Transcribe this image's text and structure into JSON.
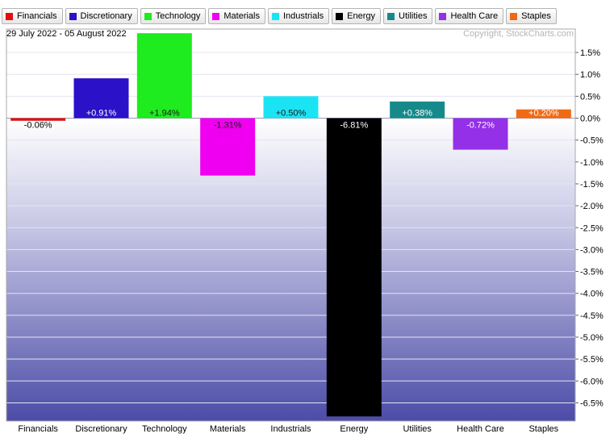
{
  "date_range": "29 July 2022 - 05 August 2022",
  "copyright": "Copyright, StockCharts.com",
  "chart_data": {
    "type": "bar",
    "categories": [
      "Financials",
      "Discretionary",
      "Technology",
      "Materials",
      "Industrials",
      "Energy",
      "Utilities",
      "Health Care",
      "Staples"
    ],
    "values": [
      -0.06,
      0.91,
      1.94,
      -1.31,
      0.5,
      -6.81,
      0.38,
      -0.72,
      0.2
    ],
    "data_labels": [
      "-0.06%",
      "+0.91%",
      "+1.94%",
      "-1.31%",
      "+0.50%",
      "-6.81%",
      "+0.38%",
      "-0.72%",
      "+0.20%"
    ],
    "colors": [
      "#e01010",
      "#2b12c8",
      "#1eec1e",
      "#f000f0",
      "#1ae4f4",
      "#000000",
      "#168a8a",
      "#9430e8",
      "#f06a14"
    ],
    "y_ticks": [
      1.5,
      1.0,
      0.5,
      0.0,
      -0.5,
      -1.0,
      -1.5,
      -2.0,
      -2.5,
      -3.0,
      -3.5,
      -4.0,
      -4.5,
      -5.0,
      -5.5,
      -6.0,
      -6.5
    ],
    "y_tick_labels": [
      "1.5%",
      "1.0%",
      "0.5%",
      "0.0%",
      "-0.5%",
      "-1.0%",
      "-1.5%",
      "-2.0%",
      "-2.5%",
      "-3.0%",
      "-3.5%",
      "-4.0%",
      "-4.5%",
      "-5.0%",
      "-5.5%",
      "-6.0%",
      "-6.5%"
    ],
    "ylim": [
      -6.9,
      2.0
    ],
    "grid": true,
    "legend": "top",
    "title": "",
    "xlabel": "",
    "ylabel": ""
  }
}
